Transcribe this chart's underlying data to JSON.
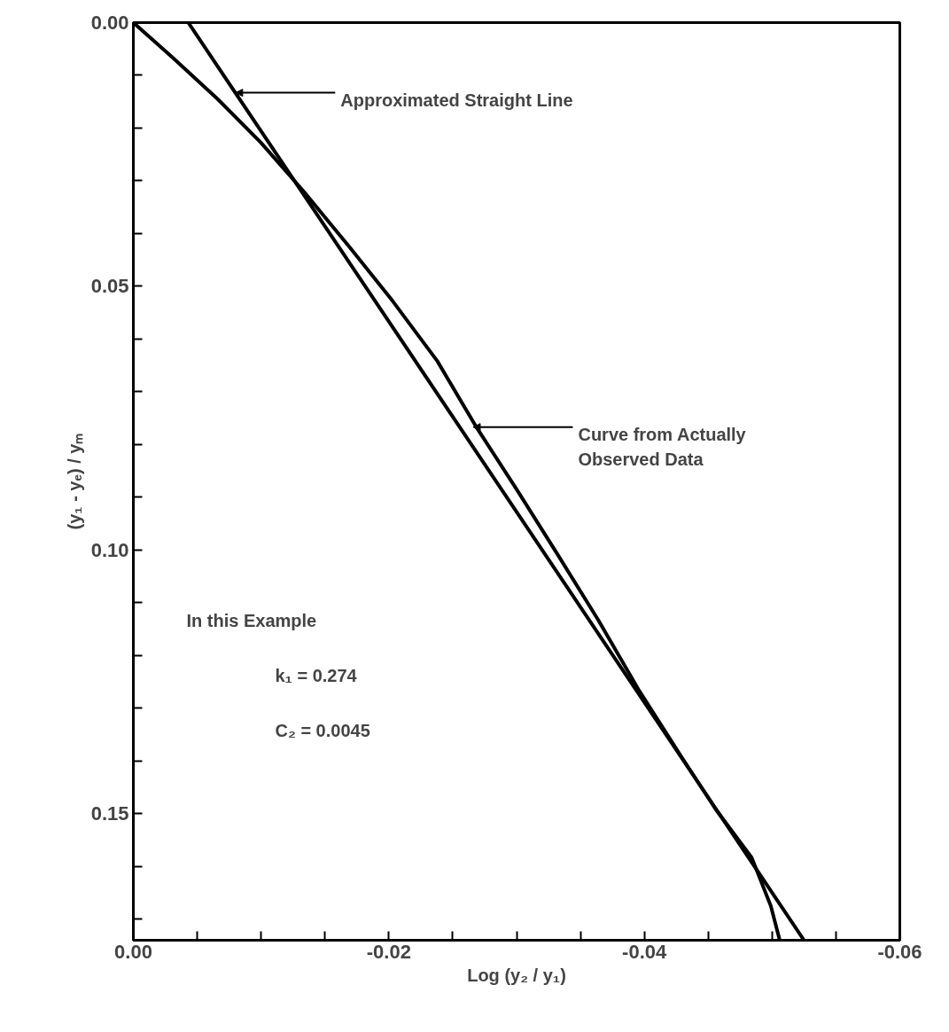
{
  "chart_data": {
    "type": "line",
    "xlabel": "Log (y₂ / y₁)",
    "ylabel": "(y₁ - yₑ) / yₘ",
    "xlim": [
      0,
      -0.06
    ],
    "ylim": [
      0.174,
      0
    ],
    "xticks": [
      {
        "value": 0,
        "label": "0.00"
      },
      {
        "value": -0.005,
        "label": null
      },
      {
        "value": -0.01,
        "label": null
      },
      {
        "value": -0.015,
        "label": null
      },
      {
        "value": -0.02,
        "label": "-0.02"
      },
      {
        "value": -0.025,
        "label": null
      },
      {
        "value": -0.03,
        "label": null
      },
      {
        "value": -0.035,
        "label": null
      },
      {
        "value": -0.04,
        "label": "-0.04"
      },
      {
        "value": -0.045,
        "label": null
      },
      {
        "value": -0.05,
        "label": null
      },
      {
        "value": -0.055,
        "label": null
      },
      {
        "value": -0.06,
        "label": "-0.06"
      }
    ],
    "yticks": [
      {
        "value": 0,
        "label": "0.00"
      },
      {
        "value": 0.01,
        "label": null
      },
      {
        "value": 0.02,
        "label": null
      },
      {
        "value": 0.03,
        "label": null
      },
      {
        "value": 0.04,
        "label": null
      },
      {
        "value": 0.05,
        "label": "0.05"
      },
      {
        "value": 0.06,
        "label": null
      },
      {
        "value": 0.07,
        "label": null
      },
      {
        "value": 0.08,
        "label": null
      },
      {
        "value": 0.09,
        "label": null
      },
      {
        "value": 0.1,
        "label": "0.10"
      },
      {
        "value": 0.11,
        "label": null
      },
      {
        "value": 0.12,
        "label": null
      },
      {
        "value": 0.13,
        "label": null
      },
      {
        "value": 0.14,
        "label": null
      },
      {
        "value": 0.15,
        "label": "0.15"
      },
      {
        "value": 0.16,
        "label": null
      },
      {
        "value": 0.17,
        "label": null
      }
    ],
    "grid": false,
    "marker": "none",
    "line_style": "solid",
    "series": [
      {
        "color": "#000000",
        "x": [
          -0.0043,
          -0.0525
        ],
        "values": [
          0,
          0.174
        ]
      },
      {
        "color": "#000000",
        "x": [
          0,
          -0.0031,
          -0.0066,
          -0.01,
          -0.0134,
          -0.0169,
          -0.0203,
          -0.0238,
          -0.0268,
          -0.03,
          -0.0332,
          -0.0364,
          -0.0396,
          -0.0429,
          -0.0456,
          -0.0484,
          -0.0499,
          -0.0506
        ],
        "values": [
          0,
          0.0067,
          0.0145,
          0.0228,
          0.0322,
          0.0425,
          0.0528,
          0.0642,
          0.0765,
          0.0885,
          0.1008,
          0.1133,
          0.1267,
          0.1392,
          0.1492,
          0.1583,
          0.1675,
          0.174
        ]
      }
    ],
    "annotations": [
      {
        "text": "Approximated Straight Line",
        "x": -0.008,
        "y": 0.0133
      },
      {
        "text": "Curve from Actually\nObserved Data",
        "x": -0.0266,
        "y": 0.0767
      },
      "In this Example",
      "k₁ = 0.274",
      "C₂ = 0.0045"
    ]
  }
}
